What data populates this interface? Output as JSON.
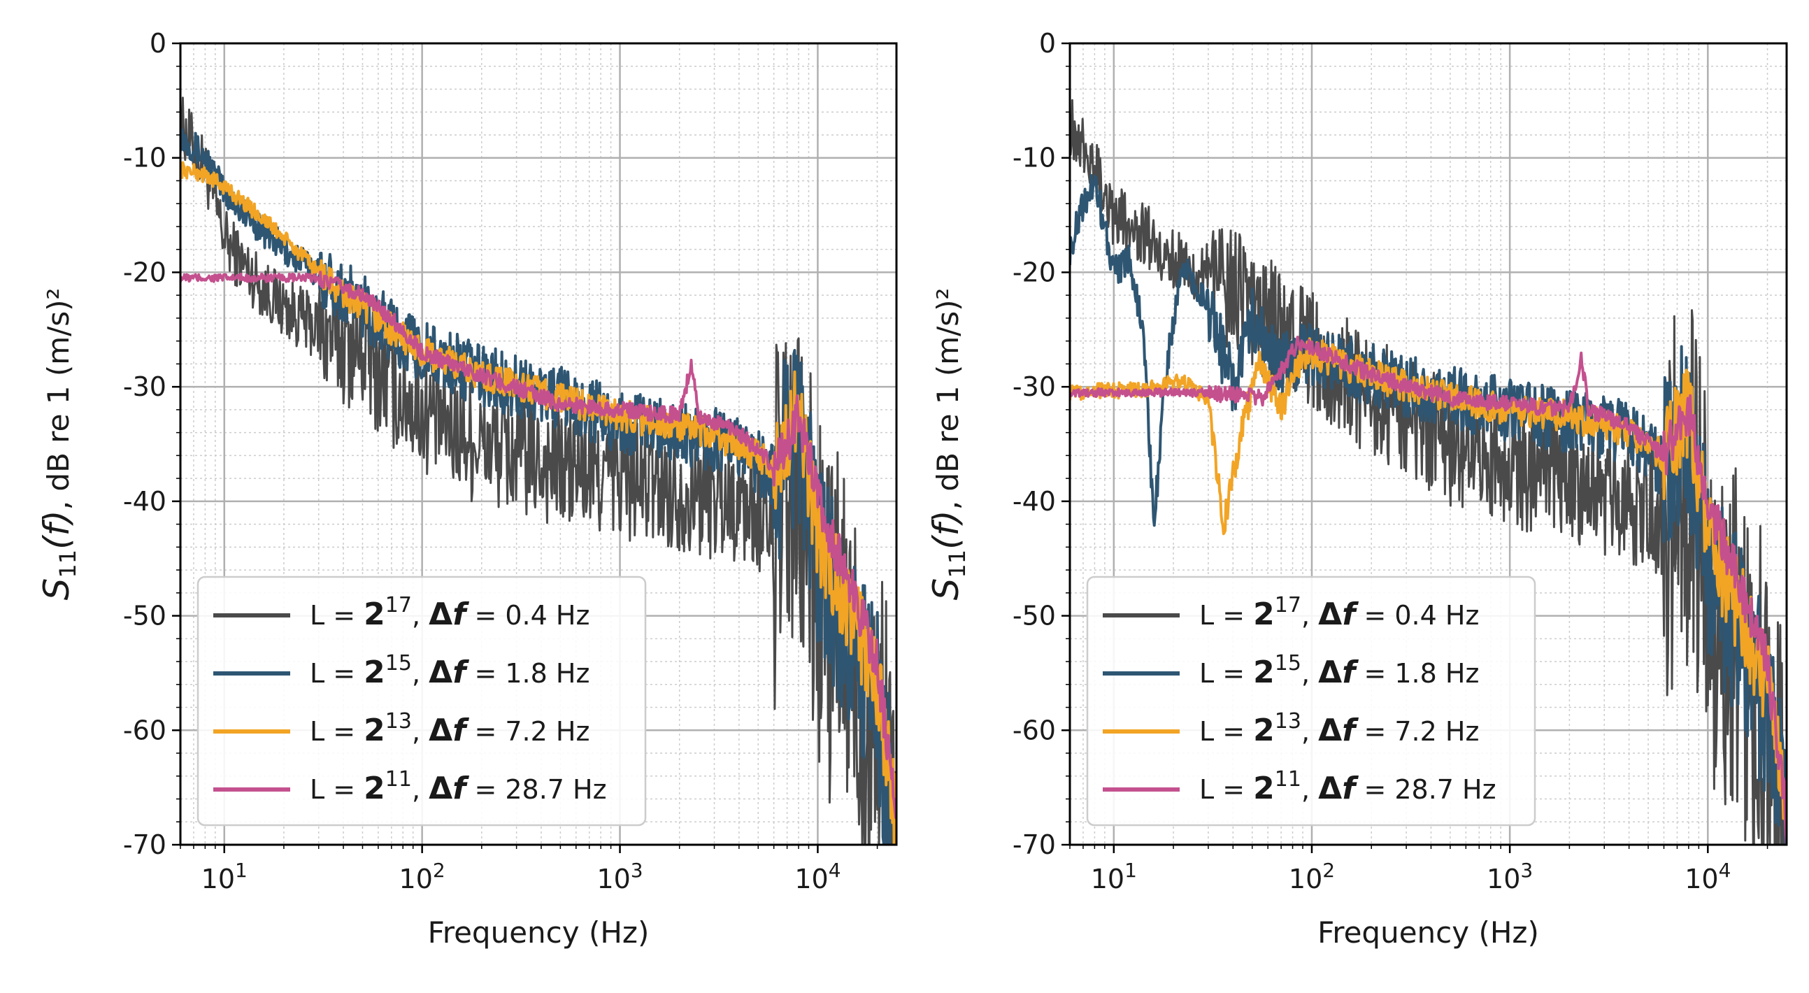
{
  "figure": {
    "charts": [
      "left",
      "right"
    ]
  },
  "chart_data": [
    {
      "id": "left",
      "type": "line",
      "xscale": "log",
      "xlim": [
        6,
        25000
      ],
      "ylim": [
        -70,
        0
      ],
      "xlabel": "Frequency (Hz)",
      "ylabel_main": "S",
      "ylabel_sub": "11",
      "ylabel_arg": "(f)",
      "ylabel_rest": ", dB re 1 (m/s)²",
      "yticks": [
        0,
        -10,
        -20,
        -30,
        -40,
        -50,
        -60,
        -70
      ],
      "ytick_labels": [
        "0",
        "-10",
        "-20",
        "-30",
        "-40",
        "-50",
        "-60",
        "-70"
      ],
      "xticks": [
        10,
        100,
        1000,
        10000
      ],
      "xtick_base": "10",
      "xtick_exps": [
        "1",
        "2",
        "3",
        "4"
      ],
      "grid": true,
      "legend_position": "lower-left",
      "series": [
        {
          "name": "L = 2^17, Δf = 0.4 Hz",
          "L_exp": "17",
          "df": "0.4 Hz",
          "color": "#4a4a4a",
          "points": [
            [
              6,
              -7
            ],
            [
              7,
              -9
            ],
            [
              8,
              -11
            ],
            [
              9,
              -14
            ],
            [
              10,
              -17
            ],
            [
              12,
              -19
            ],
            [
              15,
              -21
            ],
            [
              20,
              -23
            ],
            [
              30,
              -25
            ],
            [
              50,
              -27
            ],
            [
              70,
              -30
            ],
            [
              100,
              -32
            ],
            [
              200,
              -35
            ],
            [
              500,
              -37
            ],
            [
              1000,
              -38
            ],
            [
              2000,
              -39
            ],
            [
              4000,
              -40
            ],
            [
              6000,
              -42
            ],
            [
              8000,
              -40
            ],
            [
              10000,
              -48
            ],
            [
              15000,
              -55
            ],
            [
              20000,
              -60
            ],
            [
              25000,
              -70
            ]
          ]
        },
        {
          "name": "L = 2^15, Δf = 1.8 Hz",
          "L_exp": "15",
          "df": "1.8 Hz",
          "color": "#2e5673",
          "points": [
            [
              6,
              -8
            ],
            [
              7,
              -9
            ],
            [
              8,
              -10
            ],
            [
              10,
              -13
            ],
            [
              15,
              -16
            ],
            [
              20,
              -18
            ],
            [
              30,
              -20
            ],
            [
              50,
              -23
            ],
            [
              70,
              -25
            ],
            [
              100,
              -27
            ],
            [
              200,
              -29
            ],
            [
              500,
              -31
            ],
            [
              1000,
              -33
            ],
            [
              2000,
              -34
            ],
            [
              4000,
              -35
            ],
            [
              6000,
              -38
            ],
            [
              8000,
              -33
            ],
            [
              10000,
              -45
            ],
            [
              15000,
              -52
            ],
            [
              20000,
              -58
            ],
            [
              25000,
              -70
            ]
          ]
        },
        {
          "name": "L = 2^13, Δf = 7.2 Hz",
          "L_exp": "13",
          "df": "7.2 Hz",
          "color": "#f2a425",
          "points": [
            [
              6,
              -11
            ],
            [
              8,
              -11.5
            ],
            [
              10,
              -12.5
            ],
            [
              15,
              -15
            ],
            [
              20,
              -17
            ],
            [
              30,
              -20
            ],
            [
              40,
              -22
            ],
            [
              50,
              -23
            ],
            [
              70,
              -25
            ],
            [
              100,
              -27
            ],
            [
              200,
              -29
            ],
            [
              500,
              -31
            ],
            [
              1000,
              -32.5
            ],
            [
              2000,
              -33.5
            ],
            [
              4000,
              -35
            ],
            [
              6000,
              -37
            ],
            [
              8000,
              -32
            ],
            [
              10000,
              -43
            ],
            [
              15000,
              -50
            ],
            [
              20000,
              -56
            ],
            [
              25000,
              -68
            ]
          ]
        },
        {
          "name": "L = 2^11, Δf = 28.7 Hz",
          "L_exp": "11",
          "df": "28.7 Hz",
          "color": "#c4508e",
          "points": [
            [
              6,
              -20.5
            ],
            [
              10,
              -20.5
            ],
            [
              20,
              -20.5
            ],
            [
              30,
              -20.5
            ],
            [
              50,
              -22
            ],
            [
              70,
              -24
            ],
            [
              100,
              -27
            ],
            [
              200,
              -29
            ],
            [
              500,
              -31.5
            ],
            [
              1000,
              -32
            ],
            [
              2000,
              -32.5
            ],
            [
              2300,
              -28
            ],
            [
              2500,
              -32.5
            ],
            [
              4000,
              -34
            ],
            [
              6000,
              -37
            ],
            [
              7000,
              -35
            ],
            [
              8000,
              -32
            ],
            [
              10000,
              -40
            ],
            [
              15000,
              -48
            ],
            [
              20000,
              -54
            ],
            [
              25000,
              -68
            ]
          ]
        }
      ]
    },
    {
      "id": "right",
      "type": "line",
      "xscale": "log",
      "xlim": [
        6,
        25000
      ],
      "ylim": [
        -70,
        0
      ],
      "xlabel": "Frequency (Hz)",
      "ylabel_main": "S",
      "ylabel_sub": "11",
      "ylabel_arg": "(f)",
      "ylabel_rest": ", dB re 1 (m/s)²",
      "yticks": [
        0,
        -10,
        -20,
        -30,
        -40,
        -50,
        -60,
        -70
      ],
      "ytick_labels": [
        "0",
        "-10",
        "-20",
        "-30",
        "-40",
        "-50",
        "-60",
        "-70"
      ],
      "xticks": [
        10,
        100,
        1000,
        10000
      ],
      "xtick_base": "10",
      "xtick_exps": [
        "1",
        "2",
        "3",
        "4"
      ],
      "grid": true,
      "legend_position": "lower-left",
      "series": [
        {
          "name": "L = 2^17, Δf = 0.4 Hz",
          "L_exp": "17",
          "df": "0.4 Hz",
          "color": "#4a4a4a",
          "points": [
            [
              6,
              -7
            ],
            [
              7,
              -9
            ],
            [
              8,
              -10.5
            ],
            [
              10,
              -15
            ],
            [
              15,
              -17
            ],
            [
              20,
              -19
            ],
            [
              30,
              -20
            ],
            [
              50,
              -23
            ],
            [
              70,
              -25
            ],
            [
              100,
              -27
            ],
            [
              200,
              -31
            ],
            [
              500,
              -35
            ],
            [
              1000,
              -37
            ],
            [
              2000,
              -38
            ],
            [
              4000,
              -40
            ],
            [
              6000,
              -41
            ],
            [
              8000,
              -38
            ],
            [
              10000,
              -48
            ],
            [
              15000,
              -55
            ],
            [
              20000,
              -60
            ],
            [
              25000,
              -70
            ]
          ]
        },
        {
          "name": "L = 2^15, Δf = 1.8 Hz",
          "L_exp": "15",
          "df": "1.8 Hz",
          "color": "#2e5673",
          "points": [
            [
              6,
              -18
            ],
            [
              7,
              -14
            ],
            [
              8,
              -12
            ],
            [
              9,
              -16
            ],
            [
              10,
              -20
            ],
            [
              12,
              -19
            ],
            [
              14,
              -25
            ],
            [
              16,
              -42
            ],
            [
              18,
              -30
            ],
            [
              22,
              -19
            ],
            [
              30,
              -23
            ],
            [
              40,
              -30
            ],
            [
              50,
              -24
            ],
            [
              60,
              -27
            ],
            [
              70,
              -28
            ],
            [
              100,
              -27
            ],
            [
              200,
              -29
            ],
            [
              500,
              -31
            ],
            [
              1000,
              -32
            ],
            [
              2000,
              -33
            ],
            [
              4000,
              -34
            ],
            [
              6000,
              -37
            ],
            [
              8000,
              -33
            ],
            [
              10000,
              -45
            ],
            [
              15000,
              -52
            ],
            [
              20000,
              -58
            ],
            [
              25000,
              -70
            ]
          ]
        },
        {
          "name": "L = 2^13, Δf = 7.2 Hz",
          "L_exp": "13",
          "df": "7.2 Hz",
          "color": "#f2a425",
          "points": [
            [
              6,
              -30.5
            ],
            [
              15,
              -30.2
            ],
            [
              22,
              -29.5
            ],
            [
              30,
              -31
            ],
            [
              36,
              -42
            ],
            [
              45,
              -33
            ],
            [
              55,
              -28
            ],
            [
              70,
              -32
            ],
            [
              85,
              -28
            ],
            [
              100,
              -27
            ],
            [
              200,
              -29
            ],
            [
              500,
              -31
            ],
            [
              1000,
              -32
            ],
            [
              2000,
              -32.5
            ],
            [
              4000,
              -34
            ],
            [
              6000,
              -36
            ],
            [
              8000,
              -32
            ],
            [
              10000,
              -43
            ],
            [
              15000,
              -50
            ],
            [
              20000,
              -56
            ],
            [
              25000,
              -68
            ]
          ]
        },
        {
          "name": "L = 2^11, Δf = 28.7 Hz",
          "L_exp": "11",
          "df": "28.7 Hz",
          "color": "#c4508e",
          "points": [
            [
              6,
              -30.5
            ],
            [
              30,
              -30.5
            ],
            [
              57,
              -31
            ],
            [
              86,
              -26
            ],
            [
              100,
              -26.5
            ],
            [
              200,
              -29
            ],
            [
              500,
              -31
            ],
            [
              1000,
              -31.5
            ],
            [
              2000,
              -32
            ],
            [
              2300,
              -27.5
            ],
            [
              2500,
              -32
            ],
            [
              4000,
              -33.5
            ],
            [
              6000,
              -36
            ],
            [
              7000,
              -34
            ],
            [
              8000,
              -32
            ],
            [
              10000,
              -40
            ],
            [
              15000,
              -48
            ],
            [
              20000,
              -54
            ],
            [
              25000,
              -68
            ]
          ]
        }
      ]
    }
  ]
}
